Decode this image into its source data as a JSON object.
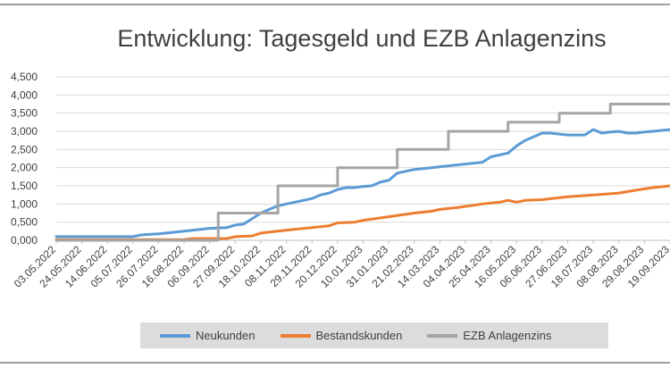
{
  "colors": {
    "Neukunden": "#5b9bd5",
    "Bestandskunden": "#ed7d31",
    "EZB Anlagenzins": "#a5a5a5",
    "grid": "#d9d9d9",
    "border": "#7f7f7f"
  },
  "chart_data": {
    "type": "line",
    "title": "Entwicklung: Tagesgeld und EZB Anlagenzins",
    "xlabel": "",
    "ylabel": "",
    "ylim": [
      0,
      4.5
    ],
    "y_ticks": [
      "0,000",
      "0,500",
      "1,000",
      "1,500",
      "2,000",
      "2,500",
      "3,000",
      "3,500",
      "4,000",
      "4,500"
    ],
    "x_tick_labels": [
      "03.05.2022",
      "24.05.2022",
      "14.06.2022",
      "05.07.2022",
      "26.07.2022",
      "16.08.2022",
      "06.09.2022",
      "27.09.2022",
      "18.10.2022",
      "08.11.2022",
      "29.11.2022",
      "20.12.2022",
      "10.01.2023",
      "31.01.2023",
      "21.02.2023",
      "14.03.2023",
      "04.04.2023",
      "25.04.2023",
      "16.05.2023",
      "06.06.2023",
      "27.06.2023",
      "18.07.2023",
      "08.08.2023",
      "29.08.2023",
      "19.09.2023"
    ],
    "grid": true,
    "legend_position": "bottom",
    "series": [
      {
        "name": "Neukunden",
        "points": [
          [
            "03.05.2022",
            0.1
          ],
          [
            "24.05.2022",
            0.1
          ],
          [
            "14.06.2022",
            0.1
          ],
          [
            "05.07.2022",
            0.1
          ],
          [
            "12.07.2022",
            0.15
          ],
          [
            "26.07.2022",
            0.18
          ],
          [
            "16.08.2022",
            0.25
          ],
          [
            "06.09.2022",
            0.33
          ],
          [
            "20.09.2022",
            0.35
          ],
          [
            "27.09.2022",
            0.42
          ],
          [
            "04.10.2022",
            0.45
          ],
          [
            "11.10.2022",
            0.6
          ],
          [
            "18.10.2022",
            0.75
          ],
          [
            "25.10.2022",
            0.85
          ],
          [
            "01.11.2022",
            0.95
          ],
          [
            "08.11.2022",
            1.0
          ],
          [
            "15.11.2022",
            1.05
          ],
          [
            "22.11.2022",
            1.1
          ],
          [
            "29.11.2022",
            1.15
          ],
          [
            "06.12.2022",
            1.25
          ],
          [
            "13.12.2022",
            1.3
          ],
          [
            "20.12.2022",
            1.4
          ],
          [
            "27.12.2022",
            1.45
          ],
          [
            "03.01.2023",
            1.45
          ],
          [
            "10.01.2023",
            1.48
          ],
          [
            "17.01.2023",
            1.5
          ],
          [
            "24.01.2023",
            1.6
          ],
          [
            "31.01.2023",
            1.65
          ],
          [
            "07.02.2023",
            1.85
          ],
          [
            "14.02.2023",
            1.9
          ],
          [
            "21.02.2023",
            1.95
          ],
          [
            "07.03.2023",
            2.0
          ],
          [
            "21.03.2023",
            2.05
          ],
          [
            "04.04.2023",
            2.1
          ],
          [
            "18.04.2023",
            2.15
          ],
          [
            "25.04.2023",
            2.3
          ],
          [
            "09.05.2023",
            2.4
          ],
          [
            "16.05.2023",
            2.6
          ],
          [
            "23.05.2023",
            2.75
          ],
          [
            "30.05.2023",
            2.85
          ],
          [
            "06.06.2023",
            2.95
          ],
          [
            "13.06.2023",
            2.95
          ],
          [
            "27.06.2023",
            2.9
          ],
          [
            "11.07.2023",
            2.9
          ],
          [
            "18.07.2023",
            3.05
          ],
          [
            "25.07.2023",
            2.95
          ],
          [
            "01.08.2023",
            2.98
          ],
          [
            "08.08.2023",
            3.0
          ],
          [
            "15.08.2023",
            2.95
          ],
          [
            "22.08.2023",
            2.95
          ],
          [
            "29.08.2023",
            2.98
          ],
          [
            "05.09.2023",
            3.0
          ],
          [
            "19.09.2023",
            3.05
          ]
        ]
      },
      {
        "name": "Bestandskunden",
        "points": [
          [
            "03.05.2022",
            0.02
          ],
          [
            "16.08.2022",
            0.02
          ],
          [
            "23.08.2022",
            0.05
          ],
          [
            "20.09.2022",
            0.05
          ],
          [
            "27.09.2022",
            0.1
          ],
          [
            "11.10.2022",
            0.12
          ],
          [
            "18.10.2022",
            0.2
          ],
          [
            "08.11.2022",
            0.28
          ],
          [
            "29.11.2022",
            0.35
          ],
          [
            "13.12.2022",
            0.4
          ],
          [
            "20.12.2022",
            0.48
          ],
          [
            "03.01.2023",
            0.5
          ],
          [
            "10.01.2023",
            0.55
          ],
          [
            "31.01.2023",
            0.65
          ],
          [
            "21.02.2023",
            0.75
          ],
          [
            "07.03.2023",
            0.8
          ],
          [
            "14.03.2023",
            0.85
          ],
          [
            "28.03.2023",
            0.9
          ],
          [
            "18.04.2023",
            1.0
          ],
          [
            "02.05.2023",
            1.05
          ],
          [
            "09.05.2023",
            1.1
          ],
          [
            "16.05.2023",
            1.05
          ],
          [
            "23.05.2023",
            1.1
          ],
          [
            "06.06.2023",
            1.12
          ],
          [
            "27.06.2023",
            1.2
          ],
          [
            "18.07.2023",
            1.25
          ],
          [
            "08.08.2023",
            1.3
          ],
          [
            "22.08.2023",
            1.38
          ],
          [
            "05.09.2023",
            1.45
          ],
          [
            "19.09.2023",
            1.5
          ]
        ]
      },
      {
        "name": "EZB Anlagenzins",
        "points": [
          [
            "03.05.2022",
            0.0
          ],
          [
            "13.09.2022",
            0.0
          ],
          [
            "13.09.2022",
            0.75
          ],
          [
            "01.11.2022",
            0.75
          ],
          [
            "01.11.2022",
            1.5
          ],
          [
            "20.12.2022",
            1.5
          ],
          [
            "20.12.2022",
            2.0
          ],
          [
            "07.02.2023",
            2.0
          ],
          [
            "07.02.2023",
            2.5
          ],
          [
            "21.03.2023",
            2.5
          ],
          [
            "21.03.2023",
            3.0
          ],
          [
            "09.05.2023",
            3.0
          ],
          [
            "09.05.2023",
            3.25
          ],
          [
            "20.06.2023",
            3.25
          ],
          [
            "20.06.2023",
            3.5
          ],
          [
            "01.08.2023",
            3.5
          ],
          [
            "01.08.2023",
            3.75
          ],
          [
            "19.09.2023",
            3.75
          ]
        ]
      }
    ]
  }
}
